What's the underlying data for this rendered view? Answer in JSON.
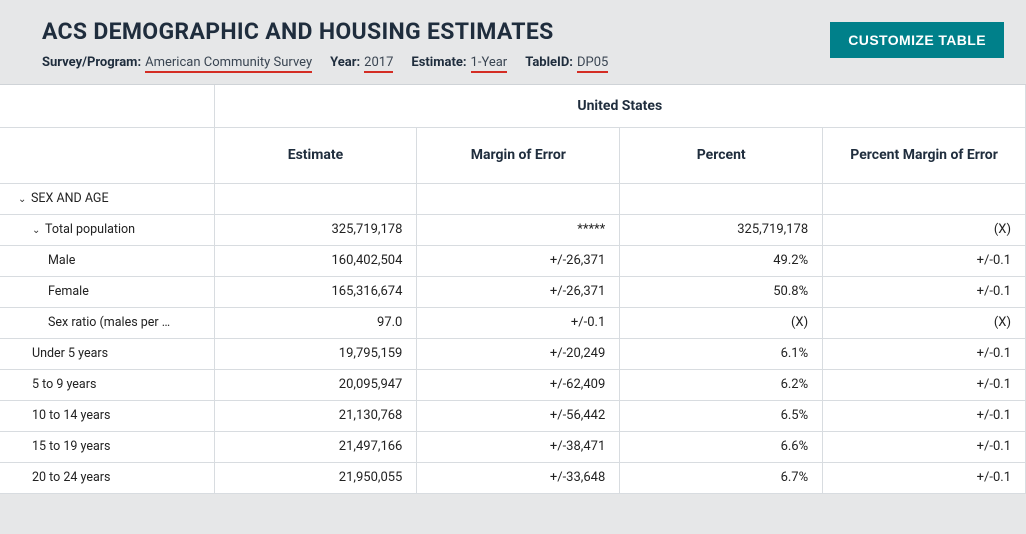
{
  "header": {
    "title": "ACS DEMOGRAPHIC AND HOUSING ESTIMATES",
    "customize_label": "CUSTOMIZE TABLE",
    "meta": [
      {
        "k": "Survey/Program:",
        "v": "American Community Survey"
      },
      {
        "k": "Year:",
        "v": "2017"
      },
      {
        "k": "Estimate:",
        "v": "1-Year"
      },
      {
        "k": "TableID:",
        "v": "DP05"
      }
    ]
  },
  "geo_header": "United States",
  "columns": [
    "Estimate",
    "Margin of Error",
    "Percent",
    "Percent Margin of Error"
  ],
  "rows": [
    {
      "label": "SEX AND AGE",
      "indent": 0,
      "caret": true,
      "values": [
        "",
        "",
        "",
        ""
      ]
    },
    {
      "label": "Total population",
      "indent": 1,
      "caret": true,
      "values": [
        "325,719,178",
        "*****",
        "325,719,178",
        "(X)"
      ]
    },
    {
      "label": "Male",
      "indent": 2,
      "caret": false,
      "values": [
        "160,402,504",
        "+/-26,371",
        "49.2%",
        "+/-0.1"
      ]
    },
    {
      "label": "Female",
      "indent": 2,
      "caret": false,
      "values": [
        "165,316,674",
        "+/-26,371",
        "50.8%",
        "+/-0.1"
      ]
    },
    {
      "label": "Sex ratio (males per …",
      "indent": 2,
      "caret": false,
      "values": [
        "97.0",
        "+/-0.1",
        "(X)",
        "(X)"
      ]
    },
    {
      "label": "Under 5 years",
      "indent": 1,
      "caret": false,
      "values": [
        "19,795,159",
        "+/-20,249",
        "6.1%",
        "+/-0.1"
      ]
    },
    {
      "label": "5 to 9 years",
      "indent": 1,
      "caret": false,
      "values": [
        "20,095,947",
        "+/-62,409",
        "6.2%",
        "+/-0.1"
      ]
    },
    {
      "label": "10 to 14 years",
      "indent": 1,
      "caret": false,
      "values": [
        "21,130,768",
        "+/-56,442",
        "6.5%",
        "+/-0.1"
      ]
    },
    {
      "label": "15 to 19 years",
      "indent": 1,
      "caret": false,
      "values": [
        "21,497,166",
        "+/-38,471",
        "6.6%",
        "+/-0.1"
      ]
    },
    {
      "label": "20 to 24 years",
      "indent": 1,
      "caret": false,
      "values": [
        "21,950,055",
        "+/-33,648",
        "6.7%",
        "+/-0.1"
      ]
    }
  ]
}
